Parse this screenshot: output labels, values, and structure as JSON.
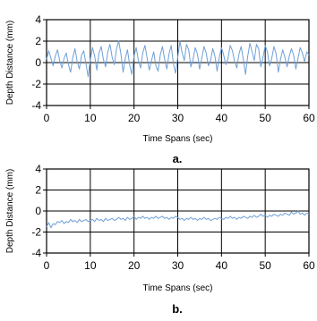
{
  "chart_data": [
    {
      "type": "line",
      "panel_label": "a.",
      "xlabel": "Time Spans (sec)",
      "ylabel": "Depth Distance (mm)",
      "xlim": [
        0,
        60
      ],
      "ylim": [
        -4,
        4
      ],
      "xticks": [
        "0",
        "10",
        "20",
        "30",
        "40",
        "50",
        "60"
      ],
      "yticks": [
        "4",
        "2",
        "0",
        "-2",
        "-4"
      ],
      "grid": true,
      "line_color": "#6f9fd8",
      "series": [
        {
          "x": [
            0,
            0.5,
            1,
            1.5,
            2,
            2.5,
            3,
            3.5,
            4,
            4.5,
            5,
            5.5,
            6,
            6.5,
            7,
            7.5,
            8,
            8.5,
            9,
            9.5,
            10,
            10.5,
            11,
            11.5,
            12,
            12.5,
            13,
            13.5,
            14,
            14.5,
            15,
            15.5,
            16,
            16.5,
            17,
            17.5,
            18,
            18.5,
            19,
            19.5,
            20,
            20.5,
            21,
            21.5,
            22,
            22.5,
            23,
            23.5,
            24,
            24.5,
            25,
            25.5,
            26,
            26.5,
            27,
            27.5,
            28,
            28.5,
            29,
            29.5,
            30,
            30.5,
            31,
            31.5,
            32,
            32.5,
            33,
            33.5,
            34,
            34.5,
            35,
            35.5,
            36,
            36.5,
            37,
            37.5,
            38,
            38.5,
            39,
            39.5,
            40,
            40.5,
            41,
            41.5,
            42,
            42.5,
            43,
            43.5,
            44,
            44.5,
            45,
            45.5,
            46,
            46.5,
            47,
            47.5,
            48,
            48.5,
            49,
            49.5,
            50,
            50.5,
            51,
            51.5,
            52,
            52.5,
            53,
            53.5,
            54,
            54.5,
            55,
            55.5,
            56,
            56.5,
            57,
            57.5,
            58,
            58.5,
            59,
            59.5,
            60
          ],
          "y": [
            0.3,
            1.1,
            0.4,
            -0.3,
            0.6,
            1.2,
            0.2,
            -0.5,
            0.4,
            0.9,
            -0.2,
            -0.9,
            0.5,
            1.3,
            0.1,
            -0.6,
            0.7,
            1.1,
            -0.1,
            -1.3,
            0.2,
            1.4,
            0.6,
            -0.7,
            0.9,
            1.5,
            0.3,
            -0.4,
            1.0,
            1.7,
            0.5,
            -0.2,
            1.3,
            2.0,
            0.8,
            -0.9,
            0.4,
            1.2,
            -0.2,
            -1.1,
            0.6,
            1.4,
            0.2,
            -0.5,
            0.9,
            1.6,
            0.4,
            -0.7,
            0.2,
            1.0,
            -0.3,
            -0.8,
            0.7,
            1.5,
            0.3,
            -0.6,
            0.8,
            1.6,
            -0.1,
            -1.0,
            0.5,
            2.0,
            0.9,
            0.2,
            1.7,
            1.2,
            -0.4,
            0.3,
            1.4,
            0.8,
            -0.6,
            0.4,
            1.5,
            0.9,
            -0.3,
            0.2,
            1.3,
            0.6,
            -0.8,
            0.5,
            1.4,
            0.7,
            -0.2,
            0.4,
            1.6,
            1.1,
            0.1,
            -0.5,
            0.8,
            1.5,
            0.3,
            -1.1,
            0.6,
            1.8,
            1.0,
            0.2,
            1.7,
            1.3,
            -0.4,
            0.5,
            1.6,
            1.0,
            -0.3,
            0.4,
            1.5,
            0.8,
            -0.9,
            0.3,
            1.2,
            0.5,
            -0.4,
            0.6,
            1.3,
            0.7,
            -0.6,
            0.4,
            1.4,
            0.9,
            0.1,
            1.0,
            0.7
          ]
        }
      ]
    },
    {
      "type": "line",
      "panel_label": "b.",
      "xlabel": "Time Spans (sec)",
      "ylabel": "Depth Distance (mm)",
      "xlim": [
        0,
        60
      ],
      "ylim": [
        -4,
        4
      ],
      "xticks": [
        "0",
        "10",
        "20",
        "30",
        "40",
        "50",
        "60"
      ],
      "yticks": [
        "4",
        "2",
        "0",
        "-2",
        "-4"
      ],
      "grid": true,
      "line_color": "#6f9fd8",
      "series": [
        {
          "x": [
            0,
            0.5,
            1,
            1.5,
            2,
            2.5,
            3,
            3.5,
            4,
            4.5,
            5,
            5.5,
            6,
            6.5,
            7,
            7.5,
            8,
            8.5,
            9,
            9.5,
            10,
            10.5,
            11,
            11.5,
            12,
            12.5,
            13,
            13.5,
            14,
            14.5,
            15,
            15.5,
            16,
            16.5,
            17,
            17.5,
            18,
            18.5,
            19,
            19.5,
            20,
            20.5,
            21,
            21.5,
            22,
            22.5,
            23,
            23.5,
            24,
            24.5,
            25,
            25.5,
            26,
            26.5,
            27,
            27.5,
            28,
            28.5,
            29,
            29.5,
            30,
            30.5,
            31,
            31.5,
            32,
            32.5,
            33,
            33.5,
            34,
            34.5,
            35,
            35.5,
            36,
            36.5,
            37,
            37.5,
            38,
            38.5,
            39,
            39.5,
            40,
            40.5,
            41,
            41.5,
            42,
            42.5,
            43,
            43.5,
            44,
            44.5,
            45,
            45.5,
            46,
            46.5,
            47,
            47.5,
            48,
            48.5,
            49,
            49.5,
            50,
            50.5,
            51,
            51.5,
            52,
            52.5,
            53,
            53.5,
            54,
            54.5,
            55,
            55.5,
            56,
            56.5,
            57,
            57.5,
            58,
            58.5,
            59,
            59.5,
            60
          ],
          "y": [
            -1.5,
            -1.1,
            -1.6,
            -1.2,
            -1.3,
            -1.0,
            -1.1,
            -0.9,
            -1.2,
            -1.0,
            -1.1,
            -0.8,
            -1.0,
            -0.9,
            -1.1,
            -0.8,
            -1.0,
            -0.9,
            -0.8,
            -1.0,
            -0.9,
            -0.8,
            -1.0,
            -0.7,
            -0.9,
            -0.8,
            -1.0,
            -0.7,
            -0.9,
            -0.8,
            -0.7,
            -0.9,
            -0.8,
            -0.6,
            -0.8,
            -0.7,
            -0.9,
            -0.6,
            -0.8,
            -0.7,
            -0.5,
            -0.8,
            -0.6,
            -0.7,
            -0.5,
            -0.7,
            -0.6,
            -0.8,
            -0.6,
            -0.7,
            -0.5,
            -0.7,
            -0.6,
            -0.5,
            -0.7,
            -0.6,
            -0.8,
            -0.6,
            -0.7,
            -0.5,
            -0.6,
            -0.8,
            -0.7,
            -0.9,
            -0.7,
            -0.8,
            -0.6,
            -0.8,
            -0.7,
            -0.9,
            -0.7,
            -0.8,
            -0.6,
            -0.8,
            -0.7,
            -0.9,
            -0.8,
            -0.7,
            -0.8,
            -0.6,
            -0.7,
            -0.8,
            -0.6,
            -0.7,
            -0.5,
            -0.7,
            -0.6,
            -0.8,
            -0.6,
            -0.7,
            -0.5,
            -0.6,
            -0.7,
            -0.5,
            -0.6,
            -0.4,
            -0.6,
            -0.5,
            -0.3,
            -0.5,
            -0.4,
            -0.6,
            -0.4,
            -0.5,
            -0.3,
            -0.4,
            -0.5,
            -0.3,
            -0.4,
            -0.2,
            -0.3,
            -0.4,
            -0.1,
            -0.3,
            -0.2,
            0.0,
            -0.3,
            -0.2,
            -0.4,
            -0.2,
            -0.3
          ]
        }
      ]
    }
  ]
}
